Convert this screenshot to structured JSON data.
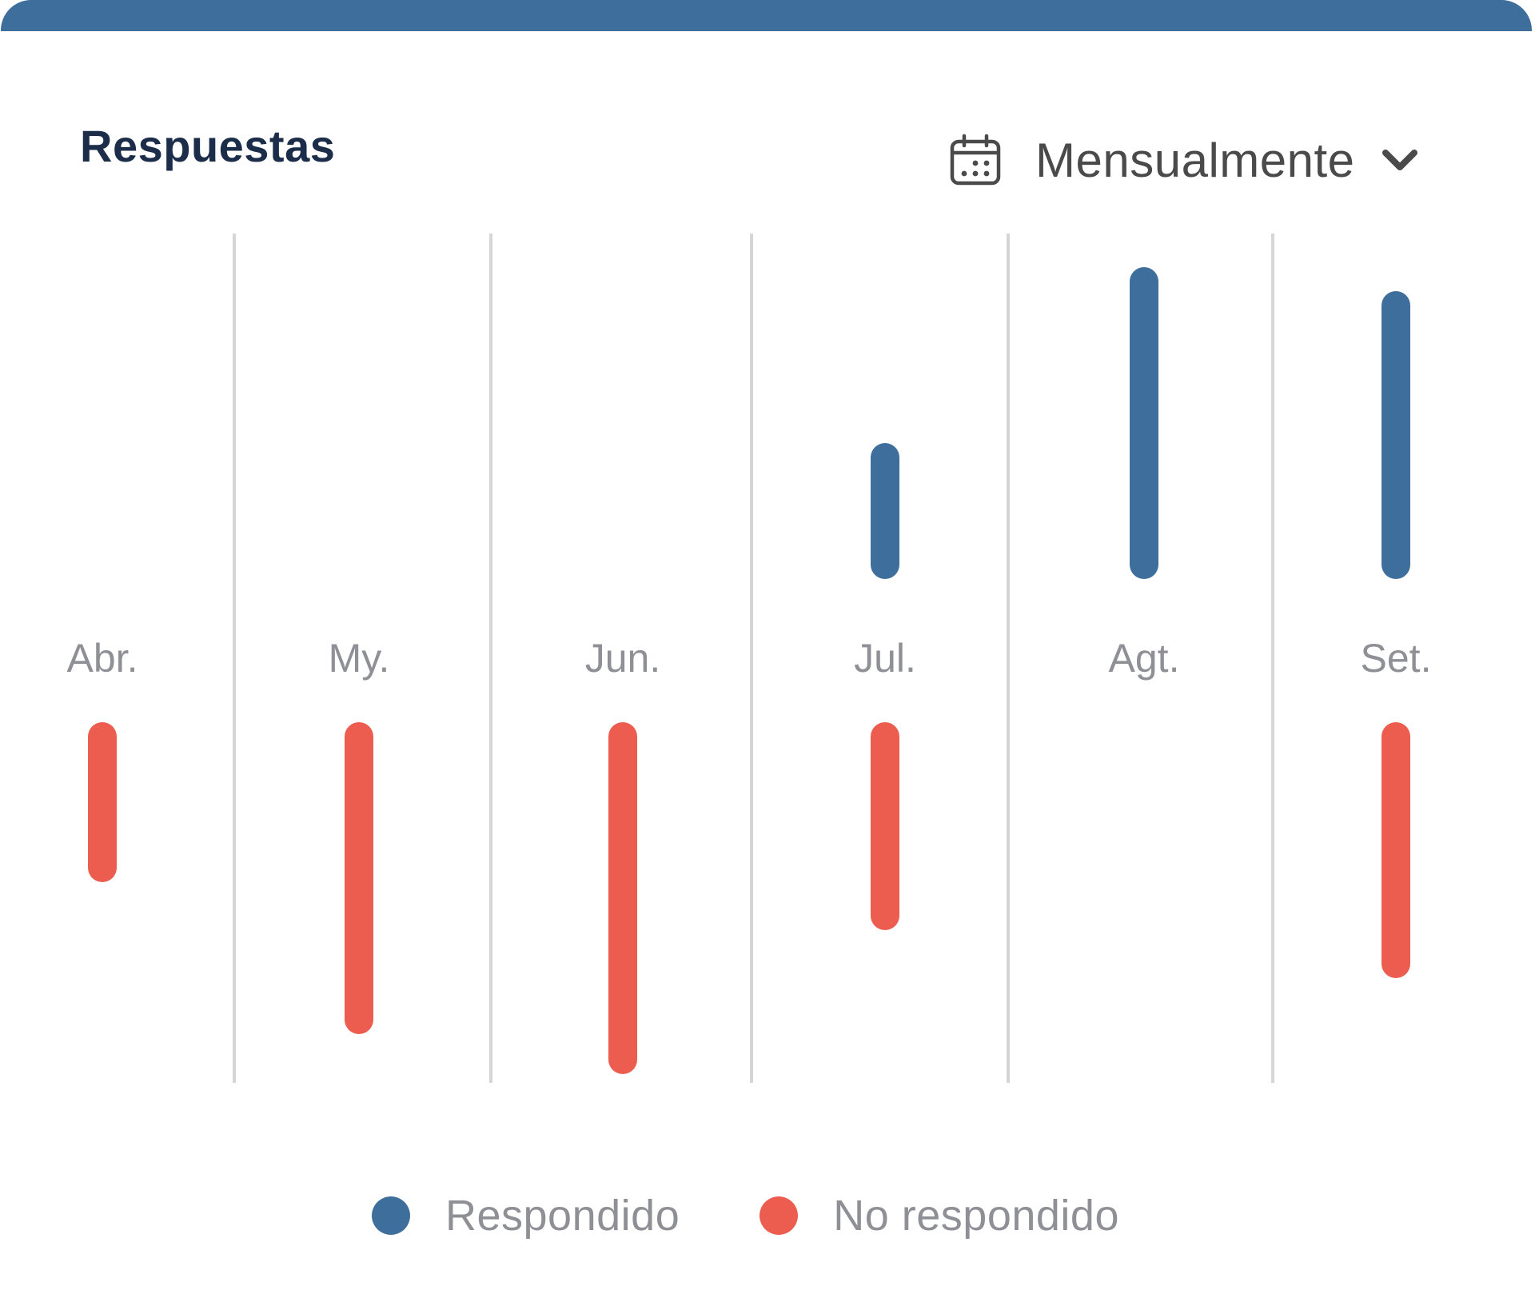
{
  "card": {
    "title": "Respuestas",
    "period": {
      "label": "Mensualmente",
      "icon": "calendar-icon",
      "dropdown_icon": "chevron-down-icon"
    }
  },
  "colors": {
    "header_bar": "#3d6e9c",
    "title": "#1c2d4a",
    "respondido": "#3d6e9c",
    "no_respondido": "#ec5c4f",
    "month_label": "#8e9096",
    "divider": "#d6d6d6"
  },
  "chart_data": {
    "type": "bar",
    "categories": [
      "Abr.",
      "My.",
      "Jun.",
      "Jul.",
      "Agt.",
      "Set."
    ],
    "series": [
      {
        "name": "Respondido",
        "values": [
          0,
          0,
          0,
          17,
          39,
          36
        ]
      },
      {
        "name": "No respondido",
        "values": [
          20,
          39,
          44,
          26,
          0,
          32
        ]
      }
    ],
    "grid": true,
    "legend_position": "bottom"
  }
}
